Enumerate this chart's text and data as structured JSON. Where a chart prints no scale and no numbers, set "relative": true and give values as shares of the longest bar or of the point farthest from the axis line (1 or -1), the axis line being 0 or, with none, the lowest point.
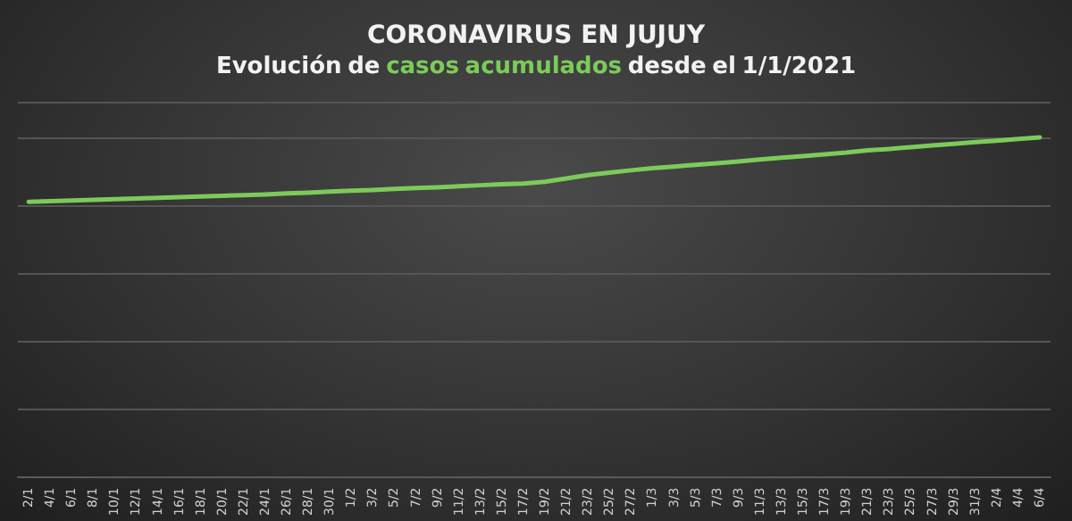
{
  "chart_data": {
    "type": "line",
    "title": "CORONAVIRUS EN JUJUY",
    "subtitle": "Evolución de casos acumulados desde el 1/1/2021",
    "categories": [
      "2/1",
      "4/1",
      "6/1",
      "8/1",
      "10/1",
      "12/1",
      "14/1",
      "16/1",
      "18/1",
      "20/1",
      "22/1",
      "24/1",
      "26/1",
      "28/1",
      "30/1",
      "1/2",
      "3/2",
      "5/2",
      "7/2",
      "9/2",
      "11/2",
      "13/2",
      "15/2",
      "17/2",
      "19/2",
      "21/2",
      "23/2",
      "25/2",
      "27/2",
      "1/3",
      "3/3",
      "5/3",
      "7/3",
      "9/3",
      "11/3",
      "13/3",
      "15/3",
      "17/3",
      "19/3",
      "21/3",
      "23/3",
      "25/3",
      "27/3",
      "29/3",
      "31/3",
      "2/4",
      "4/4",
      "6/4"
    ],
    "series": [
      {
        "color": "#7ccb5a",
        "values": [
          0.81,
          0.812,
          0.814,
          0.816,
          0.818,
          0.82,
          0.822,
          0.824,
          0.826,
          0.828,
          0.83,
          0.832,
          0.835,
          0.837,
          0.84,
          0.843,
          0.845,
          0.848,
          0.851,
          0.853,
          0.856,
          0.859,
          0.862,
          0.864,
          0.869,
          0.879,
          0.889,
          0.896,
          0.903,
          0.909,
          0.914,
          0.919,
          0.924,
          0.929,
          0.935,
          0.94,
          0.945,
          0.95,
          0.955,
          0.962,
          0.966,
          0.971,
          0.976,
          0.981,
          0.986,
          0.99,
          0.995,
          1.0
        ]
      }
    ],
    "relative": true,
    "grid": true,
    "marker": "none",
    "line_style": "solid"
  }
}
